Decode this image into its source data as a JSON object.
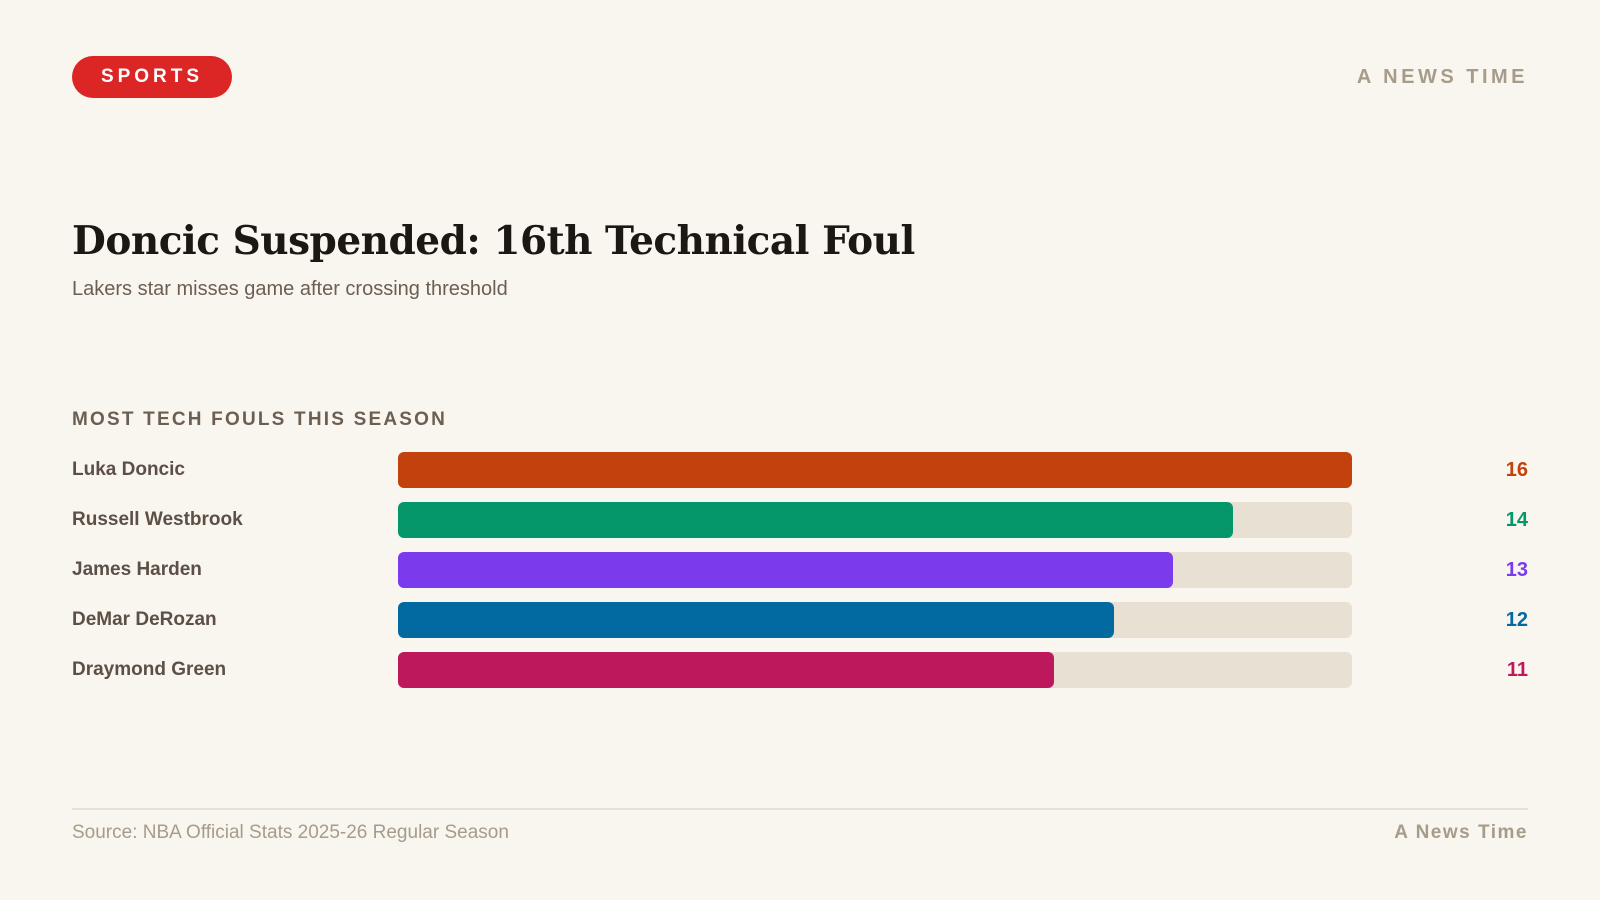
{
  "header": {
    "category": "SPORTS",
    "brand": "A NEWS TIME",
    "category_color": "#dc2626"
  },
  "headline": {
    "title": "Doncic Suspended: 16th Technical Foul",
    "subtitle": "Lakers star misses game after crossing threshold"
  },
  "chart_data": {
    "type": "bar",
    "orientation": "horizontal",
    "title": "MOST TECH FOULS THIS SEASON",
    "xlim": [
      0,
      16
    ],
    "grid": false,
    "categories": [
      "Luka Doncic",
      "Russell Westbrook",
      "James Harden",
      "DeMar DeRozan",
      "Draymond Green"
    ],
    "values": [
      16,
      14,
      13,
      12,
      11
    ],
    "colors": [
      "#c2410c",
      "#059669",
      "#7c3aed",
      "#0369a1",
      "#be185d"
    ],
    "value_labels": [
      "16",
      "14",
      "13",
      "12",
      "11"
    ]
  },
  "footer": {
    "source": "Source: NBA Official Stats 2025-26 Regular Season",
    "brand": "A News Time"
  }
}
